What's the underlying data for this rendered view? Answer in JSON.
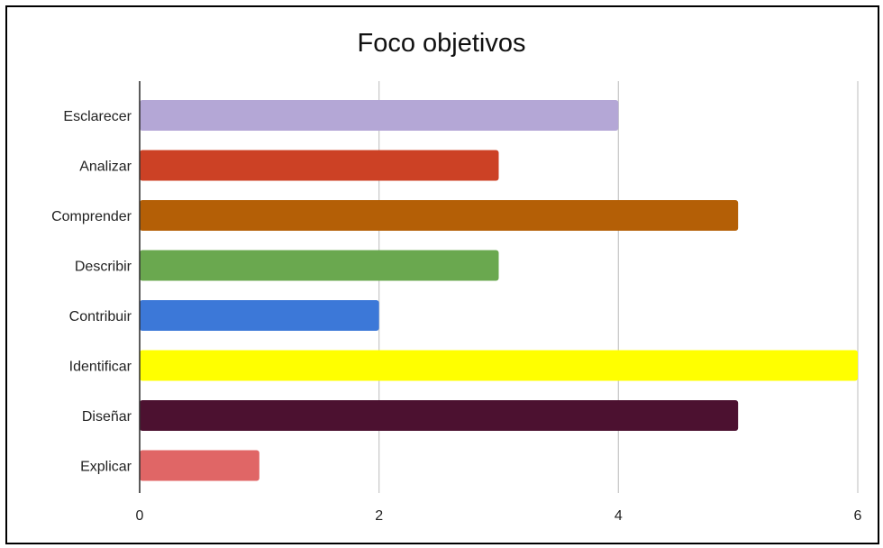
{
  "chart_data": {
    "type": "bar",
    "orientation": "horizontal",
    "title": "Foco objetivos",
    "xlabel": "",
    "ylabel": "",
    "categories": [
      "Esclarecer",
      "Analizar",
      "Comprender",
      "Describir",
      "Contribuir",
      "Identificar",
      "Diseñar",
      "Explicar"
    ],
    "values": [
      4,
      3,
      5,
      3,
      2,
      6,
      5,
      1
    ],
    "colors": [
      "#b4a7d6",
      "#cc4125",
      "#b45f06",
      "#6aa84f",
      "#3c78d8",
      "#ffff00",
      "#4c1130",
      "#e06666"
    ],
    "xlim": [
      0,
      6
    ],
    "xticks": [
      "0",
      "2",
      "4",
      "6"
    ],
    "tick_values": [
      0,
      2,
      4,
      6
    ],
    "grid": true,
    "legend": "none"
  }
}
